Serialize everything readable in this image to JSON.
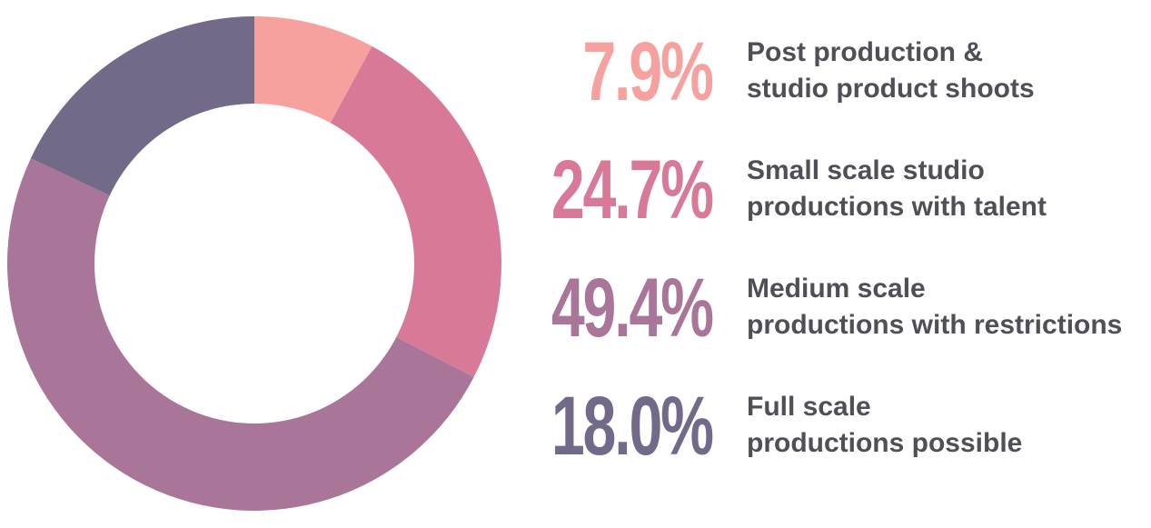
{
  "chart_data": {
    "type": "pie",
    "donut": true,
    "categories": [
      "Post production & studio product shoots",
      "Small scale studio productions with talent",
      "Medium scale productions with restrictions",
      "Full scale productions possible"
    ],
    "values": [
      7.9,
      24.7,
      49.4,
      18.0
    ],
    "colors": [
      "#f7a19f",
      "#d87a97",
      "#a97598",
      "#736a8a"
    ],
    "legend": [
      {
        "value_label": "7.9%",
        "line1": "Post production &",
        "line2": "studio product shoots",
        "color": "#f7a19f"
      },
      {
        "value_label": "24.7%",
        "line1": "Small scale studio",
        "line2": "productions with talent",
        "color": "#d87a97"
      },
      {
        "value_label": "49.4%",
        "line1": "Medium scale",
        "line2": "productions with restrictions",
        "color": "#a97598"
      },
      {
        "value_label": "18.0%",
        "line1": "Full scale",
        "line2": "productions possible",
        "color": "#736a8a"
      }
    ],
    "legend_position": "right"
  }
}
